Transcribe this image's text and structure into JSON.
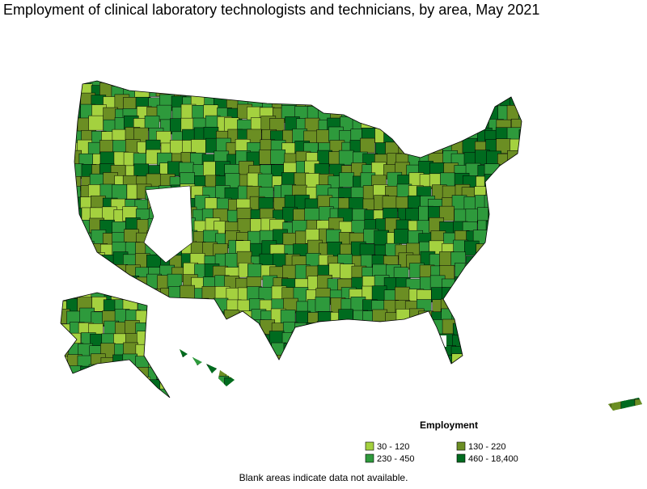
{
  "title": "Employment of clinical laboratory technologists and technicians, by area, May 2021",
  "legend": {
    "title": "Employment",
    "items": [
      {
        "label": "30 - 120",
        "color": "#a4d13f"
      },
      {
        "label": "130 - 220",
        "color": "#6b8e23"
      },
      {
        "label": "230 - 450",
        "color": "#2e9a3c"
      },
      {
        "label": "460 - 18,400",
        "color": "#006b1f"
      }
    ]
  },
  "note": "Blank areas indicate data not available."
}
